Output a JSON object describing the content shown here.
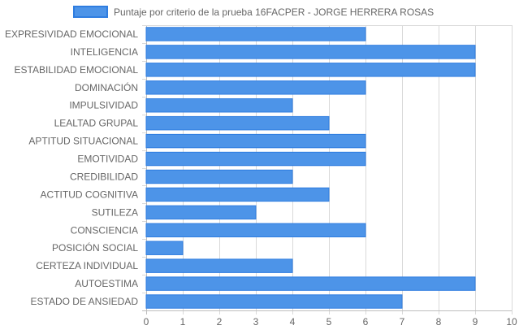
{
  "chart_data": {
    "type": "bar",
    "orientation": "horizontal",
    "categories": [
      "EXPRESIVIDAD EMOCIONAL",
      "INTELIGENCIA",
      "ESTABILIDAD EMOCIONAL",
      "DOMINACIÓN",
      "IMPULSIVIDAD",
      "LEALTAD GRUPAL",
      "APTITUD SITUACIONAL",
      "EMOTIVIDAD",
      "CREDIBILIDAD",
      "ACTITUD COGNITIVA",
      "SUTILEZA",
      "CONSCIENCIA",
      "POSICIÓN SOCIAL",
      "CERTEZA INDIVIDUAL",
      "AUTOESTIMA",
      "ESTADO DE ANSIEDAD"
    ],
    "series": [
      {
        "name": "Puntaje por criterio de la prueba 16FACPER - JORGE HERRERA ROSAS",
        "values": [
          6,
          9,
          9,
          6,
          4,
          5,
          6,
          6,
          4,
          5,
          3,
          6,
          1,
          4,
          9,
          7
        ],
        "color": "#4d94e8",
        "border_color": "#2f7de0"
      }
    ],
    "x_ticks": [
      "0",
      "1",
      "2",
      "3",
      "4",
      "5",
      "6",
      "7",
      "8",
      "9",
      "10"
    ],
    "xlim": [
      0,
      10
    ],
    "grid": true,
    "legend_position": "top"
  }
}
